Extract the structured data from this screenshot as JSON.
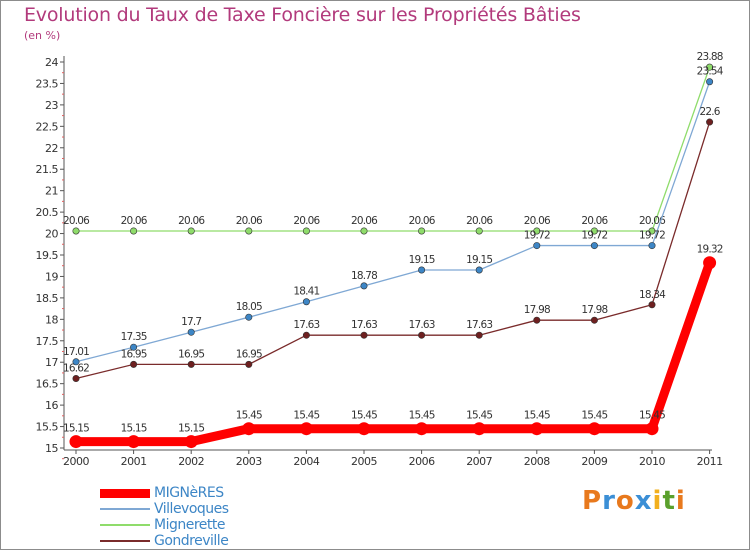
{
  "header": {
    "title": "Evolution du Taux de Taxe Foncière sur les Propriétés Bâties",
    "unit": "(en %)"
  },
  "brand": {
    "letters": [
      "P",
      "r",
      "o",
      "x",
      "i",
      "t",
      "i"
    ],
    "colors": [
      "#e8791d",
      "#3b8fd6",
      "#e8791d",
      "#3b8fd6",
      "#f2b01e",
      "#5aa02c",
      "#e8791d"
    ]
  },
  "colors": {
    "title": "#b23a7c",
    "axis": "#555555",
    "grid_tick": "#e06060"
  },
  "chart_data": {
    "type": "line",
    "x": [
      "2000",
      "2001",
      "2002",
      "2003",
      "2004",
      "2005",
      "2006",
      "2007",
      "2008",
      "2009",
      "2010",
      "2011"
    ],
    "ylim": [
      15,
      24
    ],
    "yticks": [
      "15",
      "15.5",
      "16",
      "16.5",
      "17",
      "17.5",
      "18",
      "18.5",
      "19",
      "19.5",
      "20",
      "20.5",
      "21",
      "21.5",
      "22",
      "22.5",
      "23",
      "23.5",
      "24"
    ],
    "series": [
      {
        "name": "Mignerette",
        "line_color": "#8fdc6b",
        "point_color": "#8fdc6b",
        "values": [
          20.06,
          20.06,
          20.06,
          20.06,
          20.06,
          20.06,
          20.06,
          20.06,
          20.06,
          20.06,
          20.06,
          23.88
        ],
        "labels": [
          "20.06",
          "20.06",
          "20.06",
          "20.06",
          "20.06",
          "20.06",
          "20.06",
          "20.06",
          "20.06",
          "20.06",
          "20.06",
          "23.88"
        ]
      },
      {
        "name": "Villevoques",
        "line_color": "#7fa8d4",
        "point_color": "#3d86c6",
        "values": [
          17.01,
          17.35,
          17.7,
          18.05,
          18.41,
          18.78,
          19.15,
          19.15,
          19.72,
          19.72,
          19.72,
          23.54
        ],
        "labels": [
          "17.01",
          "17.35",
          "17.7",
          "18.05",
          "18.41",
          "18.78",
          "19.15",
          "19.15",
          "19.72",
          "19.72",
          "19.72",
          "23.54"
        ]
      },
      {
        "name": "Gondreville",
        "line_color": "#7a2b2b",
        "point_color": "#6e2020",
        "values": [
          16.62,
          16.95,
          16.95,
          16.95,
          17.63,
          17.63,
          17.63,
          17.63,
          17.98,
          17.98,
          18.34,
          22.6
        ],
        "labels": [
          "16.62",
          "16.95",
          "16.95",
          "16.95",
          "17.63",
          "17.63",
          "17.63",
          "17.63",
          "17.98",
          "17.98",
          "18.34",
          "22.6"
        ]
      },
      {
        "name": "MIGNèRES",
        "line_color": "#ff0000",
        "point_color": "#ff0000",
        "values": [
          15.15,
          15.15,
          15.15,
          15.45,
          15.45,
          15.45,
          15.45,
          15.45,
          15.45,
          15.45,
          15.45,
          19.32
        ],
        "labels": [
          "15.15",
          "15.15",
          "15.15",
          "15.45",
          "15.45",
          "15.45",
          "15.45",
          "15.45",
          "15.45",
          "15.45",
          "15.45",
          "19.32"
        ]
      }
    ],
    "legend": [
      "MIGNèRES",
      "Villevoques",
      "Mignerette",
      "Gondreville"
    ],
    "legend_placement": "bottom-left"
  }
}
